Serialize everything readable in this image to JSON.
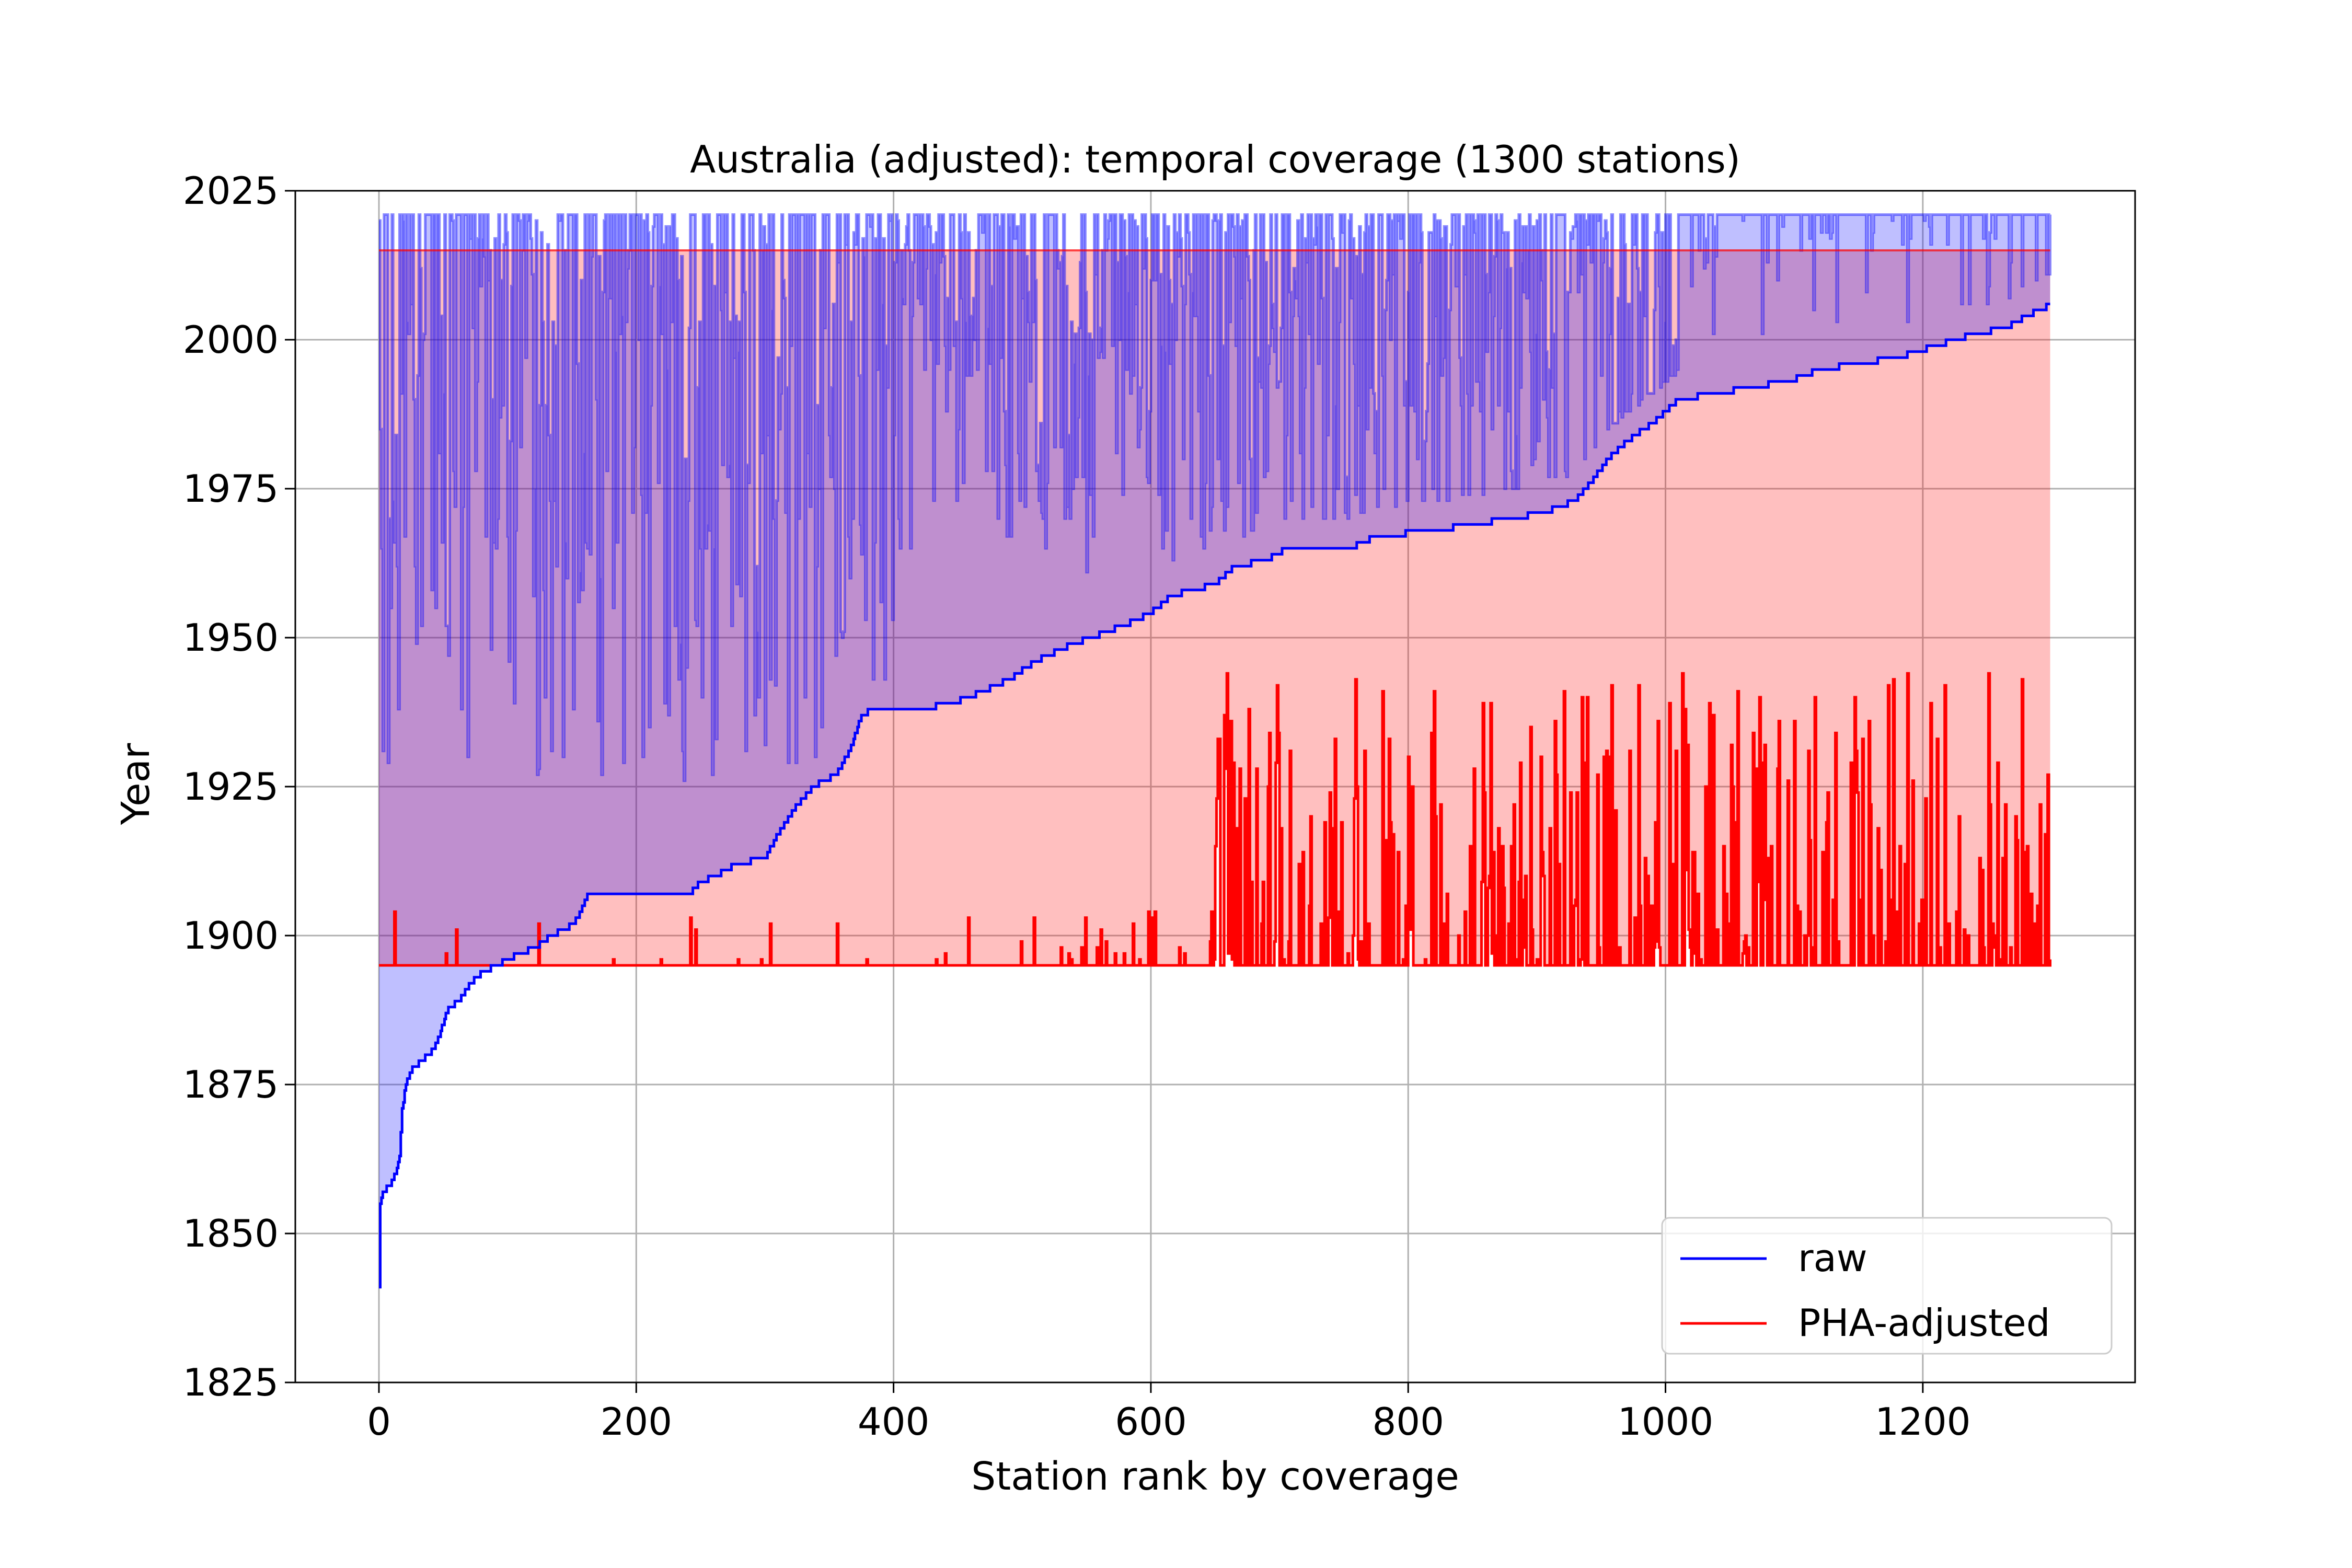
{
  "chart_data": {
    "type": "line",
    "title": "Australia (adjusted): temporal coverage (1300 stations)",
    "xlabel": "Station rank by coverage",
    "ylabel": "Year",
    "xlim": [
      -65,
      1365
    ],
    "ylim": [
      1825,
      2025
    ],
    "xticks": [
      0,
      200,
      400,
      600,
      800,
      1000,
      1200
    ],
    "xtick_labels": [
      "0",
      "200",
      "400",
      "600",
      "800",
      "1000",
      "1200"
    ],
    "yticks": [
      1825,
      1850,
      1875,
      1900,
      1925,
      1950,
      1975,
      2000,
      2025
    ],
    "ytick_labels": [
      "1825",
      "1850",
      "1875",
      "1900",
      "1925",
      "1950",
      "1975",
      "2000",
      "2025"
    ],
    "grid": true,
    "legend_position": "lower-right",
    "n_stations": 1300,
    "series": [
      {
        "name": "raw",
        "color": "#0000ff",
        "fill_color": "#0000ff",
        "fill_opacity": 0.25,
        "start_year_curve": [
          [
            0,
            1841
          ],
          [
            1,
            1855
          ],
          [
            3,
            1857
          ],
          [
            8,
            1858
          ],
          [
            13,
            1860
          ],
          [
            16,
            1863
          ],
          [
            18,
            1871
          ],
          [
            21,
            1875
          ],
          [
            24,
            1877
          ],
          [
            28,
            1878
          ],
          [
            33,
            1879
          ],
          [
            38,
            1880
          ],
          [
            43,
            1881
          ],
          [
            47,
            1883
          ],
          [
            51,
            1886
          ],
          [
            55,
            1888
          ],
          [
            62,
            1889
          ],
          [
            68,
            1891
          ],
          [
            75,
            1893
          ],
          [
            83,
            1894
          ],
          [
            91,
            1895
          ],
          [
            100,
            1896
          ],
          [
            110,
            1897
          ],
          [
            122,
            1898
          ],
          [
            133,
            1900
          ],
          [
            145,
            1901
          ],
          [
            155,
            1903
          ],
          [
            162,
            1907
          ],
          [
            200,
            1907
          ],
          [
            242,
            1907
          ],
          [
            250,
            1909
          ],
          [
            262,
            1910
          ],
          [
            277,
            1912
          ],
          [
            300,
            1913
          ],
          [
            310,
            1917
          ],
          [
            322,
            1921
          ],
          [
            337,
            1925
          ],
          [
            355,
            1927
          ],
          [
            366,
            1931
          ],
          [
            375,
            1937
          ],
          [
            385,
            1938
          ],
          [
            420,
            1938
          ],
          [
            445,
            1939
          ],
          [
            470,
            1941
          ],
          [
            490,
            1943
          ],
          [
            510,
            1946
          ],
          [
            540,
            1949
          ],
          [
            566,
            1951
          ],
          [
            590,
            1953
          ],
          [
            605,
            1955
          ],
          [
            615,
            1957
          ],
          [
            650,
            1959
          ],
          [
            665,
            1962
          ],
          [
            690,
            1963
          ],
          [
            705,
            1965
          ],
          [
            755,
            1965
          ],
          [
            775,
            1967
          ],
          [
            820,
            1968
          ],
          [
            850,
            1969
          ],
          [
            880,
            1970
          ],
          [
            905,
            1971
          ],
          [
            930,
            1973
          ],
          [
            942,
            1976
          ],
          [
            955,
            1980
          ],
          [
            970,
            1983
          ],
          [
            990,
            1986
          ],
          [
            1010,
            1990
          ],
          [
            1040,
            1991
          ],
          [
            1065,
            1992
          ],
          [
            1095,
            1993
          ],
          [
            1120,
            1995
          ],
          [
            1150,
            1996
          ],
          [
            1180,
            1997
          ],
          [
            1210,
            1999
          ],
          [
            1240,
            2001
          ],
          [
            1265,
            2002
          ],
          [
            1280,
            2004
          ],
          [
            1292,
            2005
          ],
          [
            1300,
            2006
          ]
        ],
        "end_year_max": 2021
      },
      {
        "name": "PHA-adjusted",
        "color": "#ff0000",
        "fill_color": "#ff0000",
        "fill_opacity": 0.25,
        "start_year_min": 1895,
        "start_year_spikes_max": 1944,
        "end_year": 2015
      }
    ]
  }
}
